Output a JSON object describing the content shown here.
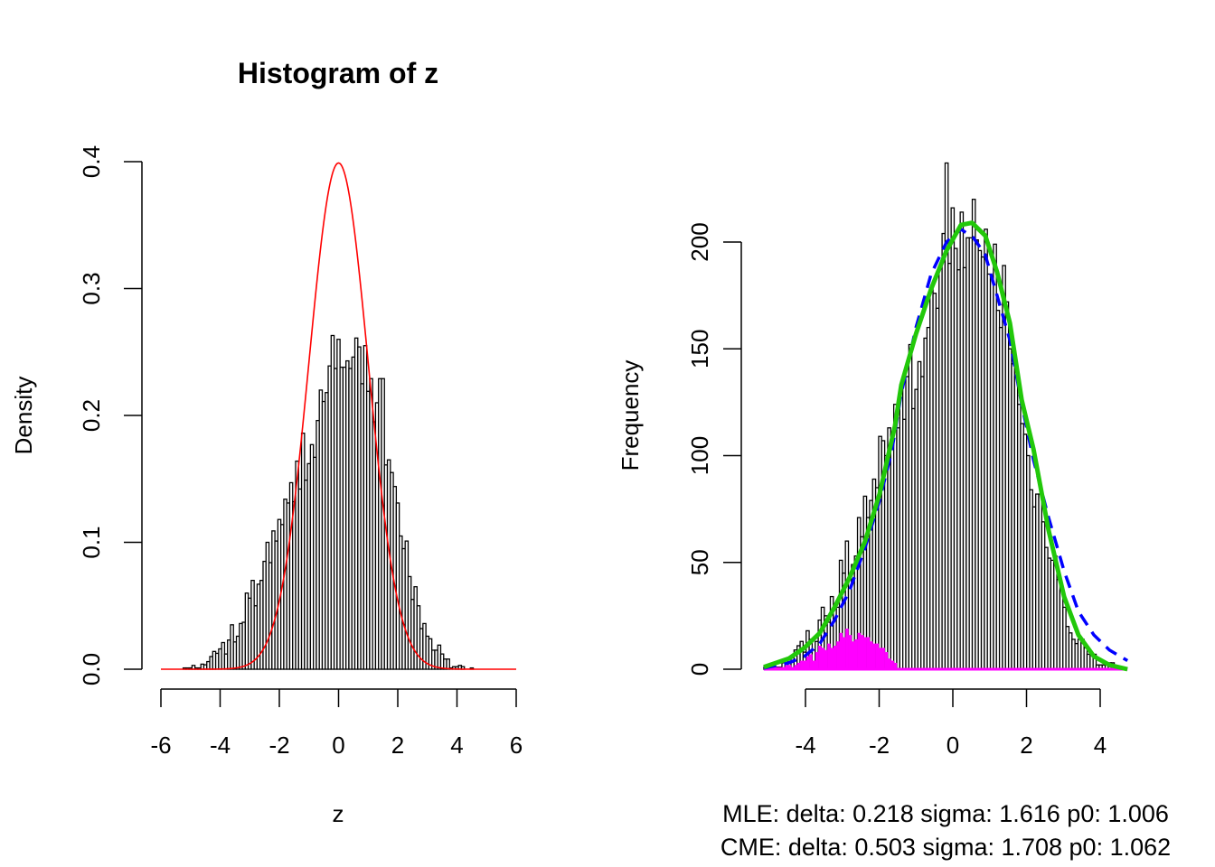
{
  "chart_data": [
    {
      "type": "bar",
      "subtype": "histogram",
      "title": "Histogram of z",
      "xlabel": "z",
      "ylabel": "Density",
      "xlim": [
        -6,
        6
      ],
      "ylim": [
        0,
        0.4
      ],
      "xticks": [
        "-6",
        "-4",
        "-2",
        "0",
        "2",
        "4",
        "6"
      ],
      "yticks": [
        "0.0",
        "0.1",
        "0.2",
        "0.3",
        "0.4"
      ],
      "bin_start": -5.25,
      "bin_width": 0.1,
      "values": [
        0.001,
        0.001,
        0.001,
        0.003,
        0.001,
        0.001,
        0.004,
        0.0035,
        0.006,
        0.01,
        0.014,
        0.0125,
        0.016,
        0.021,
        0.012,
        0.023,
        0.035,
        0.0215,
        0.026,
        0.036,
        0.037,
        0.06,
        0.056,
        0.07,
        0.05,
        0.067,
        0.07,
        0.085,
        0.1,
        0.084,
        0.109,
        0.101,
        0.118,
        0.114,
        0.134,
        0.131,
        0.147,
        0.132,
        0.164,
        0.142,
        0.186,
        0.149,
        0.162,
        0.177,
        0.167,
        0.196,
        0.22,
        0.211,
        0.218,
        0.239,
        0.263,
        0.237,
        0.26,
        0.238,
        0.238,
        0.243,
        0.237,
        0.246,
        0.261,
        0.254,
        0.225,
        0.255,
        0.219,
        0.229,
        0.195,
        0.21,
        0.229,
        0.229,
        0.161,
        0.165,
        0.155,
        0.144,
        0.131,
        0.105,
        0.095,
        0.101,
        0.073,
        0.055,
        0.065,
        0.05,
        0.032,
        0.036,
        0.026,
        0.024,
        0.015,
        0.015,
        0.019,
        0.012,
        0.008,
        0.008,
        0.001,
        0.002,
        0.002,
        0.003,
        0.002,
        0,
        0,
        0.001
      ],
      "curve": {
        "type": "normal",
        "mean": 0,
        "sd": 1,
        "color": "#ff0000"
      }
    },
    {
      "type": "bar",
      "subtype": "histogram",
      "title": "",
      "xlabel_lines": [
        "MLE: delta: 0.218 sigma: 1.616 p0: 1.006",
        "CME: delta: 0.503 sigma: 1.708 p0: 1.062"
      ],
      "ylabel": "Frequency",
      "ylim": [
        0,
        200
      ],
      "xticks": [
        "-4",
        "-2",
        "0",
        "2",
        "4"
      ],
      "yticks": [
        "0",
        "50",
        "100",
        "150",
        "200"
      ],
      "bin_start": -5.13,
      "bin_width": 0.082,
      "values": [
        1,
        1,
        1,
        1,
        1,
        1,
        3,
        5,
        3,
        6,
        9,
        11,
        13,
        8,
        18,
        14,
        9,
        13,
        23,
        29,
        25,
        22,
        34,
        29,
        29,
        51,
        45,
        60,
        43,
        49,
        53,
        71,
        62,
        81,
        71,
        79,
        89,
        85,
        109,
        107,
        100,
        113,
        110,
        124,
        113,
        133,
        117,
        137,
        152,
        122,
        131,
        144,
        137,
        155,
        160,
        178,
        176,
        169,
        189,
        204,
        237,
        190,
        216,
        197,
        187,
        214,
        188,
        202,
        202,
        220,
        201,
        196,
        193,
        206,
        185,
        184,
        199,
        168,
        160,
        189,
        172,
        150,
        143,
        137,
        124,
        115,
        110,
        100,
        84,
        76,
        82,
        82,
        69,
        57,
        52,
        51,
        53,
        42,
        37,
        29,
        20,
        17,
        14,
        12,
        14,
        14,
        10,
        7,
        7,
        7,
        2,
        2,
        2,
        2,
        3,
        3,
        1
      ],
      "component_values": [
        1,
        1,
        1,
        1,
        1,
        1,
        1,
        2,
        2,
        1,
        2,
        3,
        4,
        4,
        6,
        7,
        4,
        8,
        11,
        10,
        9,
        12,
        10,
        11,
        13,
        17,
        15,
        19,
        16,
        13,
        14,
        17,
        16,
        15,
        15,
        13,
        12,
        12,
        10,
        10,
        8,
        5,
        4,
        3
      ],
      "component_color": "#ff00ff",
      "series": [
        {
          "line": "dashed",
          "color": "#0000ff",
          "x": [
            -5.13,
            -4.45,
            -4.03,
            -3.61,
            -3.21,
            -2.8,
            -2.38,
            -1.99,
            -1.66,
            -1.4,
            -1.0,
            -0.59,
            -0.17,
            0.22,
            0.56,
            0.88,
            1.2,
            1.55,
            1.87,
            2.19,
            2.6,
            3.02,
            3.41,
            3.83,
            4.25,
            4.74
          ],
          "y": [
            0.5,
            3,
            6,
            12,
            23,
            37,
            57,
            79,
            102,
            129,
            160,
            185,
            200,
            206,
            202,
            194,
            175,
            154,
            124,
            98,
            71,
            46,
            27,
            16,
            9,
            4
          ]
        },
        {
          "line": "solid",
          "color": "#22c80a",
          "x": [
            -5.13,
            -4.45,
            -4.03,
            -3.61,
            -3.21,
            -2.8,
            -2.38,
            -1.99,
            -1.57,
            -1.4,
            -1.0,
            -0.59,
            -0.17,
            0.22,
            0.52,
            0.88,
            1.2,
            1.55,
            1.87,
            2.19,
            2.6,
            3.02,
            3.41,
            3.83,
            4.25,
            4.74
          ],
          "y": [
            1,
            5,
            10,
            17,
            29,
            43,
            60,
            82,
            114,
            133,
            157,
            178,
            196,
            208,
            209,
            203,
            186,
            162,
            126,
            103,
            65,
            34,
            16,
            6,
            2,
            0
          ]
        }
      ]
    }
  ]
}
